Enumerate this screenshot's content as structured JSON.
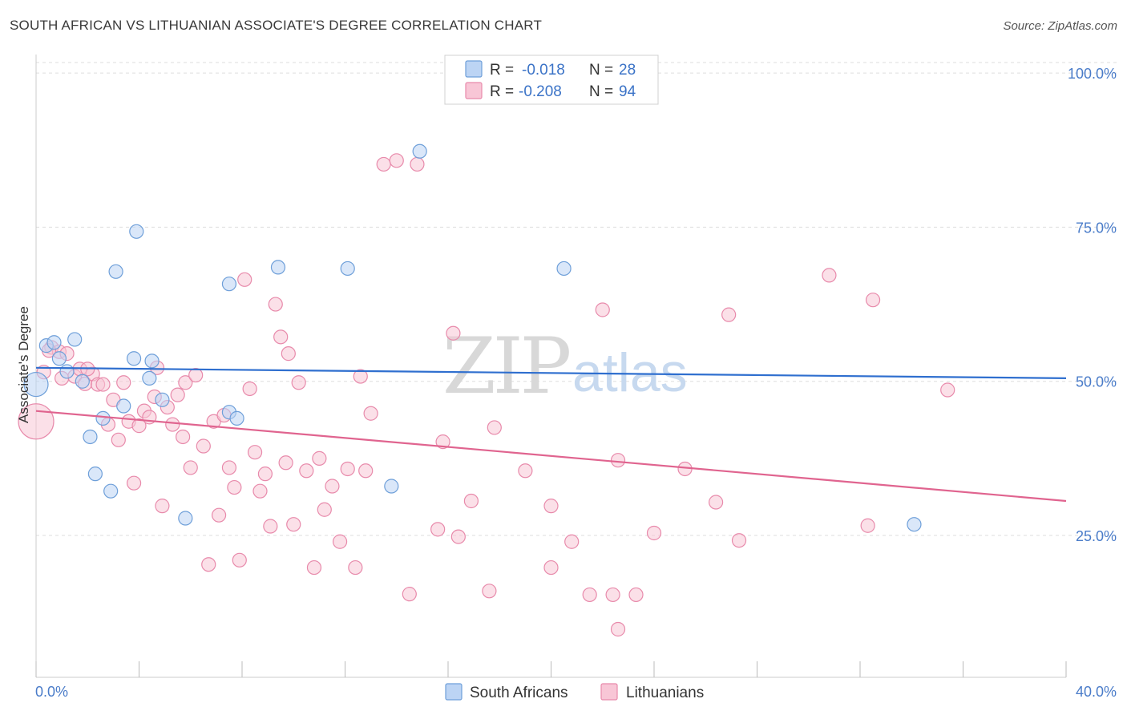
{
  "header": {
    "title": "SOUTH AFRICAN VS LITHUANIAN ASSOCIATE'S DEGREE CORRELATION CHART",
    "source": "Source: ZipAtlas.com"
  },
  "watermark": {
    "zip": "ZIP",
    "atlas": "atlas"
  },
  "colors": {
    "blue_fill": "#bcd4f4",
    "blue_stroke": "#6e9fd9",
    "blue_line": "#2f6fcf",
    "pink_fill": "#f8c6d6",
    "pink_stroke": "#e88aab",
    "pink_line": "#e0648f",
    "grid": "#dddddd",
    "axis_text": "#4a7cc9"
  },
  "chart_data": {
    "type": "scatter",
    "title": "SOUTH AFRICAN VS LITHUANIAN ASSOCIATE'S DEGREE CORRELATION CHART",
    "xlabel": "",
    "ylabel": "Associate's Degree",
    "xlim": [
      0,
      40
    ],
    "ylim": [
      2,
      103
    ],
    "x_tick_labels": [
      "0.0%",
      "40.0%"
    ],
    "y_ticks": [
      25,
      50,
      75,
      100
    ],
    "y_tick_labels": [
      "25.0%",
      "50.0%",
      "75.0%",
      "100.0%"
    ],
    "legend": [
      {
        "label": "R = ",
        "r": "-0.018",
        "n_label": "N = ",
        "n": "28"
      },
      {
        "label": "R = ",
        "r": "-0.208",
        "n_label": "N = ",
        "n": "94"
      }
    ],
    "bottom_legend": [
      "South Africans",
      "Lithuanians"
    ],
    "series": [
      {
        "name": "South Africans",
        "trend": [
          [
            0,
            52.2
          ],
          [
            40,
            50.5
          ]
        ],
        "points": [
          [
            0.0,
            49.5
          ],
          [
            0.4,
            55.8
          ],
          [
            0.7,
            56.3
          ],
          [
            0.9,
            53.7
          ],
          [
            1.2,
            51.6
          ],
          [
            1.5,
            56.8
          ],
          [
            1.8,
            50.0
          ],
          [
            2.1,
            41.0
          ],
          [
            2.3,
            35.0
          ],
          [
            2.6,
            44.0
          ],
          [
            2.9,
            32.2
          ],
          [
            3.1,
            67.8
          ],
          [
            3.4,
            46.0
          ],
          [
            3.8,
            53.7
          ],
          [
            3.9,
            74.3
          ],
          [
            4.4,
            50.5
          ],
          [
            4.5,
            53.3
          ],
          [
            4.9,
            47.0
          ],
          [
            5.8,
            27.8
          ],
          [
            7.5,
            45.0
          ],
          [
            7.5,
            65.8
          ],
          [
            7.8,
            44.0
          ],
          [
            9.4,
            68.5
          ],
          [
            12.1,
            68.3
          ],
          [
            13.8,
            33.0
          ],
          [
            14.9,
            87.3
          ],
          [
            20.5,
            68.3
          ],
          [
            34.1,
            26.8
          ]
        ]
      },
      {
        "name": "Lithuanians",
        "trend": [
          [
            0,
            45.2
          ],
          [
            40,
            30.6
          ]
        ],
        "points": [
          [
            0.0,
            43.5
          ],
          [
            0.3,
            51.5
          ],
          [
            0.6,
            55.5
          ],
          [
            0.9,
            54.8
          ],
          [
            1.2,
            54.5
          ],
          [
            1.5,
            50.8
          ],
          [
            1.7,
            52.0
          ],
          [
            1.9,
            49.6
          ],
          [
            2.2,
            51.2
          ],
          [
            2.4,
            49.5
          ],
          [
            2.6,
            49.5
          ],
          [
            2.8,
            43.0
          ],
          [
            3.0,
            47.0
          ],
          [
            3.2,
            40.5
          ],
          [
            3.4,
            49.8
          ],
          [
            3.6,
            43.5
          ],
          [
            3.8,
            33.5
          ],
          [
            4.0,
            42.8
          ],
          [
            4.2,
            45.2
          ],
          [
            4.4,
            44.2
          ],
          [
            4.6,
            47.5
          ],
          [
            4.7,
            52.2
          ],
          [
            4.9,
            29.8
          ],
          [
            5.1,
            45.8
          ],
          [
            5.3,
            43.0
          ],
          [
            5.5,
            47.8
          ],
          [
            5.7,
            41.0
          ],
          [
            5.8,
            49.8
          ],
          [
            6.0,
            36.0
          ],
          [
            6.2,
            51.0
          ],
          [
            6.5,
            39.5
          ],
          [
            6.7,
            20.3
          ],
          [
            6.9,
            43.5
          ],
          [
            7.1,
            28.3
          ],
          [
            7.3,
            44.5
          ],
          [
            7.5,
            36.0
          ],
          [
            7.7,
            32.8
          ],
          [
            7.9,
            21.0
          ],
          [
            8.1,
            66.5
          ],
          [
            8.3,
            48.8
          ],
          [
            8.5,
            38.5
          ],
          [
            8.7,
            32.2
          ],
          [
            8.9,
            35.0
          ],
          [
            9.1,
            26.5
          ],
          [
            9.3,
            62.5
          ],
          [
            9.5,
            57.2
          ],
          [
            9.7,
            36.8
          ],
          [
            9.8,
            54.5
          ],
          [
            10.0,
            26.8
          ],
          [
            10.2,
            49.8
          ],
          [
            10.5,
            35.5
          ],
          [
            10.8,
            19.8
          ],
          [
            11.0,
            37.5
          ],
          [
            11.2,
            29.2
          ],
          [
            11.5,
            33.0
          ],
          [
            11.8,
            24.0
          ],
          [
            12.1,
            35.8
          ],
          [
            12.4,
            19.8
          ],
          [
            12.6,
            50.8
          ],
          [
            12.8,
            35.5
          ],
          [
            13.0,
            44.8
          ],
          [
            13.5,
            85.2
          ],
          [
            14.0,
            85.8
          ],
          [
            14.5,
            15.5
          ],
          [
            14.8,
            85.2
          ],
          [
            15.6,
            26.0
          ],
          [
            15.8,
            40.2
          ],
          [
            16.2,
            57.8
          ],
          [
            16.4,
            24.8
          ],
          [
            16.9,
            30.6
          ],
          [
            17.6,
            16.0
          ],
          [
            17.8,
            42.5
          ],
          [
            19.0,
            35.5
          ],
          [
            20.0,
            29.8
          ],
          [
            20.0,
            19.8
          ],
          [
            20.8,
            24.0
          ],
          [
            21.5,
            15.4
          ],
          [
            22.0,
            61.6
          ],
          [
            22.4,
            15.4
          ],
          [
            22.6,
            37.2
          ],
          [
            22.6,
            9.8
          ],
          [
            23.3,
            15.4
          ],
          [
            24.0,
            25.4
          ],
          [
            25.2,
            35.8
          ],
          [
            26.4,
            30.4
          ],
          [
            26.9,
            60.8
          ],
          [
            27.3,
            24.2
          ],
          [
            30.8,
            67.2
          ],
          [
            32.3,
            26.6
          ],
          [
            32.5,
            63.2
          ],
          [
            35.4,
            48.6
          ],
          [
            0.5,
            55.0
          ],
          [
            1.0,
            50.5
          ],
          [
            2.0,
            52.0
          ]
        ]
      }
    ]
  }
}
